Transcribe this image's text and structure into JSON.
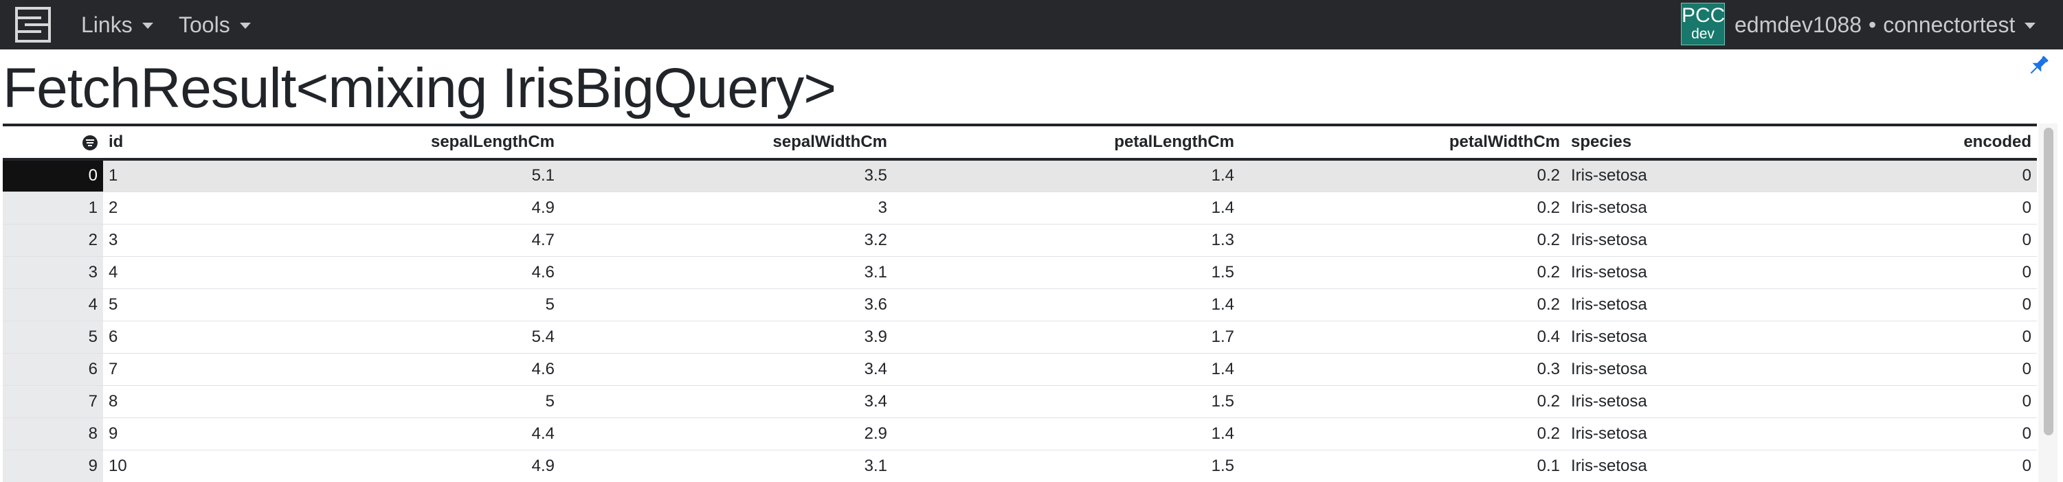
{
  "navbar": {
    "links_label": "Links",
    "tools_label": "Tools",
    "badge_top": "PCC",
    "badge_bottom": "dev",
    "user": "edmdev1088",
    "separator": "•",
    "workspace": "connectortest"
  },
  "page": {
    "title": "FetchResult<mixing IrisBigQuery>"
  },
  "table": {
    "columns": [
      "id",
      "sepalLengthCm",
      "sepalWidthCm",
      "petalLengthCm",
      "petalWidthCm",
      "species",
      "encoded"
    ],
    "selected_row": 0,
    "rows": [
      {
        "index": "0",
        "cells": [
          "1",
          "5.1",
          "3.5",
          "1.4",
          "0.2",
          "Iris-setosa",
          "0"
        ]
      },
      {
        "index": "1",
        "cells": [
          "2",
          "4.9",
          "3",
          "1.4",
          "0.2",
          "Iris-setosa",
          "0"
        ]
      },
      {
        "index": "2",
        "cells": [
          "3",
          "4.7",
          "3.2",
          "1.3",
          "0.2",
          "Iris-setosa",
          "0"
        ]
      },
      {
        "index": "3",
        "cells": [
          "4",
          "4.6",
          "3.1",
          "1.5",
          "0.2",
          "Iris-setosa",
          "0"
        ]
      },
      {
        "index": "4",
        "cells": [
          "5",
          "5",
          "3.6",
          "1.4",
          "0.2",
          "Iris-setosa",
          "0"
        ]
      },
      {
        "index": "5",
        "cells": [
          "6",
          "5.4",
          "3.9",
          "1.7",
          "0.4",
          "Iris-setosa",
          "0"
        ]
      },
      {
        "index": "6",
        "cells": [
          "7",
          "4.6",
          "3.4",
          "1.4",
          "0.3",
          "Iris-setosa",
          "0"
        ]
      },
      {
        "index": "7",
        "cells": [
          "8",
          "5",
          "3.4",
          "1.5",
          "0.2",
          "Iris-setosa",
          "0"
        ]
      },
      {
        "index": "8",
        "cells": [
          "9",
          "4.4",
          "2.9",
          "1.4",
          "0.2",
          "Iris-setosa",
          "0"
        ]
      },
      {
        "index": "9",
        "cells": [
          "10",
          "4.9",
          "3.1",
          "1.5",
          "0.1",
          "Iris-setosa",
          "0"
        ]
      }
    ]
  },
  "colors": {
    "navbar_bg": "#26282b",
    "badge_bg": "#17786b",
    "pin_accent": "#1a73e8",
    "selected_index_bg": "#111111"
  },
  "icons": {
    "logo": "stacked-layers-logo-icon",
    "pin": "pin-icon",
    "column_menu": "column-menu-icon"
  }
}
